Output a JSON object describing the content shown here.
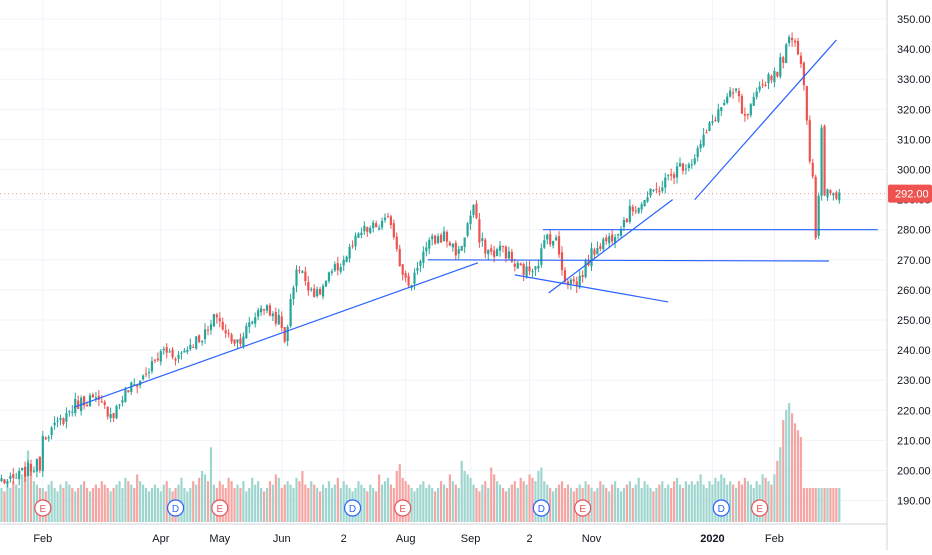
{
  "chart_data": {
    "type": "candlestick",
    "title": "",
    "xlabel": "",
    "ylabel": "",
    "ylim": [
      182,
      353
    ],
    "grid": true,
    "last_price": 292.0,
    "last_price_label": "292.00",
    "y_ticks": [
      190,
      200,
      210,
      220,
      230,
      240,
      250,
      260,
      270,
      280,
      290,
      300,
      310,
      320,
      330,
      340,
      350
    ],
    "y_tick_labels": [
      "190.00",
      "200.00",
      "210.00",
      "220.00",
      "230.00",
      "240.00",
      "250.00",
      "260.00",
      "270.00",
      "280.00",
      "290.00",
      "300.00",
      "310.00",
      "320.00",
      "330.00",
      "340.00",
      "350.00"
    ],
    "x_labels": [
      {
        "label": "Feb",
        "idx": 14
      },
      {
        "label": "Apr",
        "idx": 54
      },
      {
        "label": "May",
        "idx": 74
      },
      {
        "label": "Jun",
        "idx": 95
      },
      {
        "label": "2",
        "idx": 116
      },
      {
        "label": "Aug",
        "idx": 137
      },
      {
        "label": "Sep",
        "idx": 159
      },
      {
        "label": "2",
        "idx": 179
      },
      {
        "label": "Nov",
        "idx": 200
      },
      {
        "label": "2020",
        "idx": 241
      },
      {
        "label": "Feb",
        "idx": 262
      }
    ],
    "events": [
      {
        "type": "E",
        "idx": 14
      },
      {
        "type": "D",
        "idx": 59
      },
      {
        "type": "E",
        "idx": 74
      },
      {
        "type": "D",
        "idx": 119
      },
      {
        "type": "E",
        "idx": 136
      },
      {
        "type": "D",
        "idx": 183
      },
      {
        "type": "E",
        "idx": 197
      },
      {
        "type": "D",
        "idx": 244
      },
      {
        "type": "E",
        "idx": 257
      }
    ],
    "anchors": [
      [
        0,
        197
      ],
      [
        3,
        196
      ],
      [
        7,
        199
      ],
      [
        10,
        201
      ],
      [
        13,
        202
      ],
      [
        14,
        212
      ],
      [
        18,
        214
      ],
      [
        25,
        222
      ],
      [
        30,
        224
      ],
      [
        36,
        220
      ],
      [
        38,
        219
      ],
      [
        42,
        226
      ],
      [
        47,
        230
      ],
      [
        52,
        236
      ],
      [
        55,
        240
      ],
      [
        60,
        238
      ],
      [
        64,
        242
      ],
      [
        70,
        246
      ],
      [
        73,
        252
      ],
      [
        76,
        245
      ],
      [
        80,
        243
      ],
      [
        84,
        248
      ],
      [
        88,
        255
      ],
      [
        94,
        250
      ],
      [
        96,
        243
      ],
      [
        100,
        268
      ],
      [
        104,
        262
      ],
      [
        107,
        258
      ],
      [
        111,
        264
      ],
      [
        116,
        270
      ],
      [
        122,
        279
      ],
      [
        127,
        281
      ],
      [
        132,
        283
      ],
      [
        135,
        270
      ],
      [
        138,
        260
      ],
      [
        142,
        271
      ],
      [
        146,
        276
      ],
      [
        150,
        278
      ],
      [
        155,
        272
      ],
      [
        160,
        288
      ],
      [
        162,
        276
      ],
      [
        166,
        272
      ],
      [
        170,
        274
      ],
      [
        174,
        268
      ],
      [
        178,
        266
      ],
      [
        182,
        270
      ],
      [
        185,
        278
      ],
      [
        188,
        276
      ],
      [
        191,
        264
      ],
      [
        195,
        262
      ],
      [
        199,
        270
      ],
      [
        202,
        275
      ],
      [
        206,
        277
      ],
      [
        210,
        282
      ],
      [
        214,
        287
      ],
      [
        218,
        290
      ],
      [
        222,
        293
      ],
      [
        226,
        297
      ],
      [
        230,
        301
      ],
      [
        234,
        303
      ],
      [
        238,
        310
      ],
      [
        242,
        318
      ],
      [
        245,
        322
      ],
      [
        249,
        326
      ],
      [
        252,
        316
      ],
      [
        256,
        324
      ],
      [
        259,
        330
      ],
      [
        263,
        333
      ],
      [
        266,
        340
      ],
      [
        268,
        345
      ],
      [
        270,
        340
      ],
      [
        272,
        330
      ],
      [
        274,
        304
      ],
      [
        275,
        298
      ],
      [
        276,
        276
      ],
      [
        277,
        290
      ],
      [
        278,
        312
      ],
      [
        279,
        292
      ]
    ],
    "volume_values": [
      10,
      9,
      11,
      10,
      12,
      11,
      10,
      14,
      13,
      21,
      16,
      12,
      11,
      10,
      10,
      9,
      11,
      12,
      10,
      9,
      11,
      10,
      12,
      11,
      10,
      9,
      10,
      11,
      12,
      10,
      9,
      10,
      11,
      10,
      12,
      11,
      10,
      9,
      10,
      11,
      12,
      10,
      13,
      12,
      11,
      10,
      14,
      12,
      11,
      10,
      9,
      10,
      11,
      10,
      9,
      11,
      12,
      10,
      9,
      10,
      11,
      13,
      10,
      9,
      10,
      12,
      11,
      13,
      15,
      14,
      12,
      22,
      11,
      10,
      12,
      11,
      10,
      13,
      12,
      10,
      11,
      10,
      12,
      9,
      10,
      13,
      11,
      12,
      10,
      9,
      10,
      12,
      11,
      14,
      13,
      10,
      11,
      12,
      11,
      10,
      13,
      12,
      15,
      11,
      10,
      12,
      11,
      10,
      9,
      11,
      10,
      12,
      10,
      11,
      13,
      10,
      12,
      11,
      10,
      9,
      10,
      12,
      11,
      10,
      9,
      11,
      10,
      9,
      14,
      11,
      12,
      13,
      11,
      10,
      15,
      17,
      13,
      12,
      11,
      10,
      9,
      10,
      11,
      12,
      10,
      11,
      10,
      9,
      10,
      12,
      11,
      10,
      14,
      12,
      11,
      10,
      18,
      15,
      14,
      13,
      11,
      10,
      9,
      11,
      12,
      10,
      16,
      14,
      12,
      11,
      10,
      9,
      10,
      11,
      12,
      10,
      13,
      12,
      11,
      14,
      13,
      12,
      15,
      16,
      12,
      11,
      10,
      9,
      10,
      11,
      12,
      10,
      11,
      10,
      9,
      10,
      11,
      10,
      12,
      11,
      10,
      9,
      10,
      12,
      11,
      10,
      9,
      11,
      12,
      10,
      9,
      10,
      11,
      12,
      10,
      11,
      13,
      10,
      12,
      11,
      10,
      9,
      10,
      11,
      12,
      10,
      11,
      10,
      12,
      13,
      11,
      10,
      12,
      11,
      12,
      11,
      12,
      14,
      11,
      10,
      12,
      11,
      13,
      12,
      14,
      13,
      11,
      12,
      11,
      10,
      12,
      11,
      13,
      12,
      11,
      10,
      12,
      11,
      14,
      13,
      12,
      11,
      14,
      18,
      22,
      30,
      33,
      35,
      32,
      29,
      27,
      25
    ],
    "line_series": [
      {
        "x1": 24.5,
        "y1": 221,
        "x2": 161.5,
        "y2": 269
      },
      {
        "x1": 144.5,
        "y1": 270,
        "x2": 280.5,
        "y2": 269.6
      },
      {
        "x1": 183.5,
        "y1": 280,
        "x2": 297,
        "y2": 280
      },
      {
        "x1": 174,
        "y1": 265,
        "x2": 226,
        "y2": 256
      },
      {
        "x1": 185.5,
        "y1": 259,
        "x2": 227.5,
        "y2": 290
      },
      {
        "x1": 235,
        "y1": 290,
        "x2": 283,
        "y2": 343
      }
    ]
  }
}
